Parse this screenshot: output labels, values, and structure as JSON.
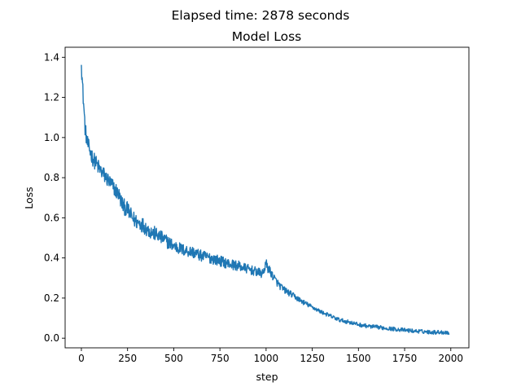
{
  "chart_data": {
    "type": "line",
    "suptitle": "Elapsed time: 2878 seconds",
    "title": "Model Loss",
    "xlabel": "step",
    "ylabel": "Loss",
    "xlim": [
      -88,
      2098
    ],
    "ylim": [
      -0.048,
      1.45
    ],
    "xticks": [
      0,
      250,
      500,
      750,
      1000,
      1250,
      1500,
      1750,
      2000
    ],
    "xtick_labels": [
      "0",
      "250",
      "500",
      "750",
      "1000",
      "1250",
      "1500",
      "1750",
      "2000"
    ],
    "yticks": [
      0.0,
      0.2,
      0.4,
      0.6,
      0.8,
      1.0,
      1.2,
      1.4
    ],
    "ytick_labels": [
      "0.0",
      "0.2",
      "0.4",
      "0.6",
      "0.8",
      "1.0",
      "1.2",
      "1.4"
    ],
    "grid": false,
    "legend": "none",
    "series": [
      {
        "color": "#1f77b4",
        "x": [
          0,
          10,
          20,
          30,
          40,
          60,
          80,
          100,
          125,
          150,
          175,
          200,
          225,
          250,
          275,
          300,
          325,
          350,
          375,
          400,
          450,
          500,
          550,
          600,
          650,
          700,
          750,
          800,
          850,
          900,
          950,
          980,
          1000,
          1010,
          1030,
          1050,
          1075,
          1100,
          1150,
          1200,
          1250,
          1300,
          1350,
          1400,
          1450,
          1500,
          1550,
          1600,
          1650,
          1700,
          1750,
          1800,
          1850,
          1900,
          1950,
          1990
        ],
        "y": [
          1.36,
          1.2,
          1.05,
          0.98,
          0.95,
          0.9,
          0.87,
          0.84,
          0.81,
          0.78,
          0.75,
          0.72,
          0.66,
          0.64,
          0.6,
          0.58,
          0.57,
          0.55,
          0.53,
          0.52,
          0.49,
          0.46,
          0.44,
          0.43,
          0.41,
          0.4,
          0.385,
          0.37,
          0.36,
          0.345,
          0.33,
          0.32,
          0.37,
          0.35,
          0.32,
          0.29,
          0.26,
          0.24,
          0.21,
          0.18,
          0.155,
          0.13,
          0.11,
          0.09,
          0.08,
          0.068,
          0.06,
          0.055,
          0.05,
          0.045,
          0.04,
          0.036,
          0.033,
          0.03,
          0.03,
          0.028
        ]
      }
    ]
  }
}
